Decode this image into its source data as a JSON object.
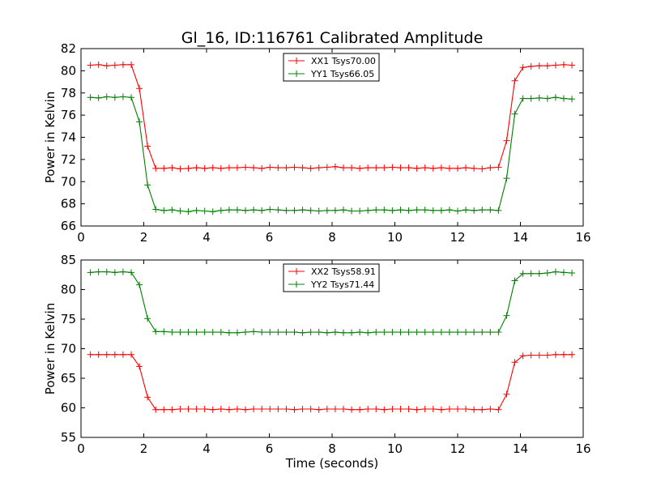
{
  "figure": {
    "title": "Gl_16, ID:116761 Calibrated Amplitude",
    "colors": {
      "xx": "#ff0000",
      "yy": "#008000",
      "axes": "#000000",
      "background": "#ffffff"
    }
  },
  "chart_data": [
    {
      "type": "line",
      "title": "Gl_16, ID:116761 Calibrated Amplitude",
      "xlabel": "",
      "ylabel": "Power in Kelvin",
      "xlim": [
        0,
        16
      ],
      "ylim": [
        66,
        82
      ],
      "xticks": [
        "0",
        "2",
        "4",
        "6",
        "8",
        "10",
        "12",
        "14",
        "16"
      ],
      "yticks": [
        "66",
        "68",
        "70",
        "72",
        "74",
        "76",
        "78",
        "80",
        "82"
      ],
      "grid": false,
      "legend_position": "top-center",
      "marker": "plus",
      "x": [
        0.3,
        0.56,
        0.82,
        1.08,
        1.34,
        1.6,
        1.86,
        2.12,
        2.38,
        2.64,
        2.9,
        3.16,
        3.42,
        3.68,
        3.94,
        4.2,
        4.46,
        4.72,
        4.98,
        5.24,
        5.5,
        5.76,
        6.02,
        6.28,
        6.54,
        6.8,
        7.06,
        7.32,
        7.58,
        7.84,
        8.1,
        8.36,
        8.62,
        8.88,
        9.14,
        9.4,
        9.66,
        9.92,
        10.18,
        10.44,
        10.7,
        10.96,
        11.22,
        11.48,
        11.74,
        12.0,
        12.26,
        12.52,
        12.78,
        13.04,
        13.3,
        13.56,
        13.82,
        14.08,
        14.34,
        14.6,
        14.86,
        15.12,
        15.38,
        15.64
      ],
      "series": [
        {
          "name": "XX1 Tsys70.00",
          "color": "#ff0000",
          "values": [
            80.5,
            80.55,
            80.45,
            80.5,
            80.55,
            80.55,
            78.4,
            73.2,
            71.2,
            71.2,
            71.25,
            71.15,
            71.2,
            71.25,
            71.2,
            71.25,
            71.2,
            71.25,
            71.25,
            71.3,
            71.25,
            71.2,
            71.3,
            71.25,
            71.25,
            71.3,
            71.25,
            71.2,
            71.25,
            71.3,
            71.35,
            71.25,
            71.25,
            71.2,
            71.25,
            71.25,
            71.25,
            71.3,
            71.25,
            71.25,
            71.2,
            71.25,
            71.2,
            71.25,
            71.2,
            71.2,
            71.25,
            71.2,
            71.15,
            71.25,
            71.3,
            73.7,
            79.1,
            80.3,
            80.4,
            80.45,
            80.45,
            80.5,
            80.55,
            80.5
          ]
        },
        {
          "name": "YY1 Tsys66.05",
          "color": "#008000",
          "values": [
            77.6,
            77.55,
            77.65,
            77.6,
            77.65,
            77.6,
            75.4,
            69.7,
            67.5,
            67.4,
            67.45,
            67.35,
            67.3,
            67.4,
            67.35,
            67.3,
            67.4,
            67.45,
            67.45,
            67.4,
            67.45,
            67.4,
            67.5,
            67.45,
            67.4,
            67.4,
            67.45,
            67.4,
            67.35,
            67.4,
            67.4,
            67.45,
            67.35,
            67.35,
            67.4,
            67.45,
            67.45,
            67.4,
            67.45,
            67.4,
            67.45,
            67.45,
            67.4,
            67.4,
            67.45,
            67.35,
            67.45,
            67.4,
            67.45,
            67.45,
            67.4,
            70.3,
            76.1,
            77.5,
            77.5,
            77.55,
            77.5,
            77.6,
            77.5,
            77.45
          ]
        }
      ]
    },
    {
      "type": "line",
      "title": "",
      "xlabel": "Time (seconds)",
      "ylabel": "Power in Kelvin",
      "xlim": [
        0,
        16
      ],
      "ylim": [
        55,
        85
      ],
      "xticks": [
        "0",
        "2",
        "4",
        "6",
        "8",
        "10",
        "12",
        "14",
        "16"
      ],
      "yticks": [
        "55",
        "60",
        "65",
        "70",
        "75",
        "80",
        "85"
      ],
      "grid": false,
      "legend_position": "top-center",
      "marker": "plus",
      "x": [
        0.3,
        0.56,
        0.82,
        1.08,
        1.34,
        1.6,
        1.86,
        2.12,
        2.38,
        2.64,
        2.9,
        3.16,
        3.42,
        3.68,
        3.94,
        4.2,
        4.46,
        4.72,
        4.98,
        5.24,
        5.5,
        5.76,
        6.02,
        6.28,
        6.54,
        6.8,
        7.06,
        7.32,
        7.58,
        7.84,
        8.1,
        8.36,
        8.62,
        8.88,
        9.14,
        9.4,
        9.66,
        9.92,
        10.18,
        10.44,
        10.7,
        10.96,
        11.22,
        11.48,
        11.74,
        12.0,
        12.26,
        12.52,
        12.78,
        13.04,
        13.3,
        13.56,
        13.82,
        14.08,
        14.34,
        14.6,
        14.86,
        15.12,
        15.38,
        15.64
      ],
      "series": [
        {
          "name": "XX2 Tsys58.91",
          "color": "#ff0000",
          "values": [
            69.0,
            69.0,
            69.0,
            69.0,
            69.0,
            69.0,
            67.0,
            61.8,
            59.7,
            59.7,
            59.7,
            59.8,
            59.8,
            59.8,
            59.8,
            59.7,
            59.8,
            59.7,
            59.8,
            59.7,
            59.8,
            59.8,
            59.8,
            59.8,
            59.8,
            59.7,
            59.8,
            59.8,
            59.7,
            59.8,
            59.8,
            59.8,
            59.7,
            59.7,
            59.8,
            59.8,
            59.7,
            59.8,
            59.8,
            59.8,
            59.7,
            59.8,
            59.8,
            59.7,
            59.8,
            59.8,
            59.8,
            59.7,
            59.7,
            59.8,
            59.7,
            62.3,
            67.7,
            68.8,
            68.9,
            68.9,
            68.9,
            69.0,
            69.0,
            69.0
          ]
        },
        {
          "name": "YY2 Tsys71.44",
          "color": "#008000",
          "values": [
            82.9,
            83.0,
            83.0,
            82.9,
            83.0,
            82.9,
            80.8,
            75.1,
            72.9,
            72.9,
            72.8,
            72.8,
            72.8,
            72.8,
            72.8,
            72.8,
            72.8,
            72.7,
            72.7,
            72.8,
            72.9,
            72.8,
            72.8,
            72.8,
            72.8,
            72.8,
            72.7,
            72.8,
            72.8,
            72.7,
            72.8,
            72.7,
            72.7,
            72.8,
            72.7,
            72.8,
            72.8,
            72.8,
            72.8,
            72.8,
            72.8,
            72.8,
            72.8,
            72.8,
            72.8,
            72.8,
            72.8,
            72.8,
            72.8,
            72.8,
            72.8,
            75.6,
            81.5,
            82.7,
            82.7,
            82.7,
            82.8,
            83.0,
            82.9,
            82.8
          ]
        }
      ]
    }
  ]
}
